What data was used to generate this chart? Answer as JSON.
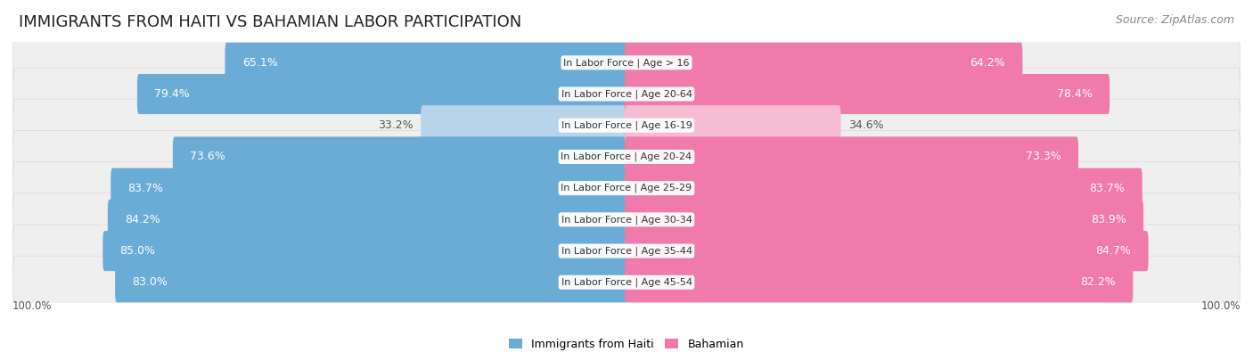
{
  "title": "IMMIGRANTS FROM HAITI VS BAHAMIAN LABOR PARTICIPATION",
  "source": "Source: ZipAtlas.com",
  "categories": [
    "In Labor Force | Age > 16",
    "In Labor Force | Age 20-64",
    "In Labor Force | Age 16-19",
    "In Labor Force | Age 20-24",
    "In Labor Force | Age 25-29",
    "In Labor Force | Age 30-34",
    "In Labor Force | Age 35-44",
    "In Labor Force | Age 45-54"
  ],
  "haiti_values": [
    65.1,
    79.4,
    33.2,
    73.6,
    83.7,
    84.2,
    85.0,
    83.0
  ],
  "bahamian_values": [
    64.2,
    78.4,
    34.6,
    73.3,
    83.7,
    83.9,
    84.7,
    82.2
  ],
  "max_value": 100.0,
  "haiti_color_full": "#6bacd6",
  "haiti_color_light": "#b8d4ea",
  "bahamian_color_full": "#f07aab",
  "bahamian_color_light": "#f5bcd4",
  "row_bg_color": "#efefef",
  "title_fontsize": 13,
  "source_fontsize": 9,
  "bar_label_fontsize": 9,
  "category_fontsize": 8,
  "legend_fontsize": 9,
  "axis_label_fontsize": 8.5
}
